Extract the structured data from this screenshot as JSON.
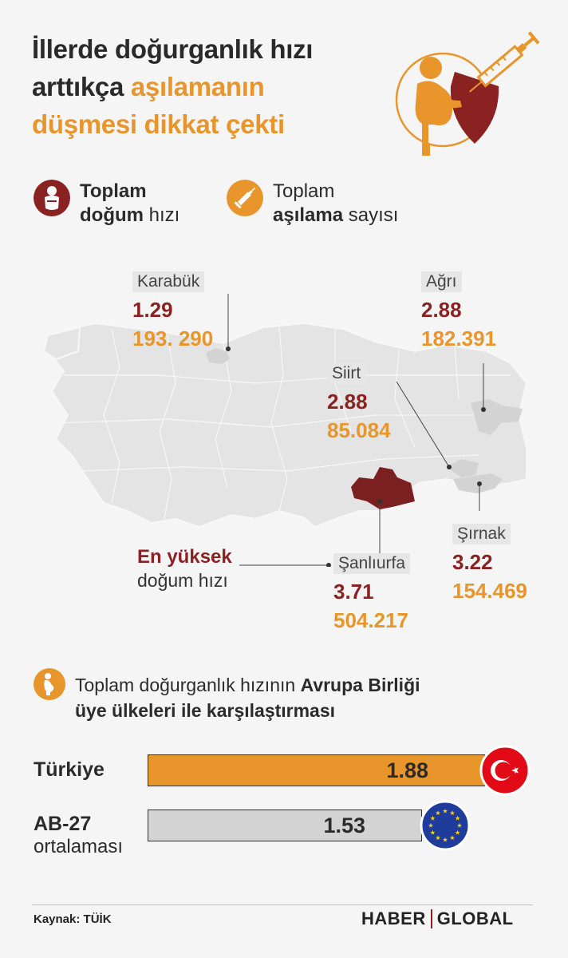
{
  "title": {
    "line1": "İllerde doğurganlık hızı",
    "line2_dark": "arttıkça ",
    "line2_accent": "aşılamanın",
    "line3": "düşmesi dikkat çekti"
  },
  "legend": {
    "birth": {
      "line1": "Toplam",
      "bold2": "doğum",
      "rest2": " hızı"
    },
    "vaccine": {
      "line1": "Toplam",
      "bold2": "aşılama",
      "rest2": " sayısı"
    }
  },
  "provinces": [
    {
      "name": "Karabük",
      "birth_rate": "1.29",
      "vaccinations": "193. 290"
    },
    {
      "name": "Ağrı",
      "birth_rate": "2.88",
      "vaccinations": "182.391"
    },
    {
      "name": "Siirt",
      "birth_rate": "2.88",
      "vaccinations": "85.084"
    },
    {
      "name": "Şanlıurfa",
      "birth_rate": "3.71",
      "vaccinations": "504.217"
    },
    {
      "name": "Şırnak",
      "birth_rate": "3.22",
      "vaccinations": "154.469"
    }
  ],
  "highest_note": {
    "line1": "En yüksek",
    "line2": "doğum hızı"
  },
  "comparison": {
    "text_plain": "Toplam doğurganlık hızının ",
    "text_bold1": "Avrupa Birliği",
    "text_bold2": "üye ülkeleri ile karşılaştırması"
  },
  "chart_data": {
    "type": "bar",
    "categories": [
      "Türkiye",
      "AB-27 ortalaması"
    ],
    "values": [
      1.88,
      1.53
    ],
    "value_labels": [
      "1.88",
      "1.53"
    ],
    "colors": [
      "#e8962c",
      "#d3d3d3"
    ]
  },
  "bars": [
    {
      "label": "Türkiye",
      "sublabel": "",
      "value": "1.88"
    },
    {
      "label": "AB-27",
      "sublabel": "ortalaması",
      "value": "1.53"
    }
  ],
  "footer": {
    "source": "Kaynak: TÜİK",
    "logo_left": "HABER",
    "logo_right": "GLOBAL"
  },
  "colors": {
    "accent": "#e8962c",
    "dark_red": "#8a2222",
    "map_gray": "#e4e4e4"
  }
}
